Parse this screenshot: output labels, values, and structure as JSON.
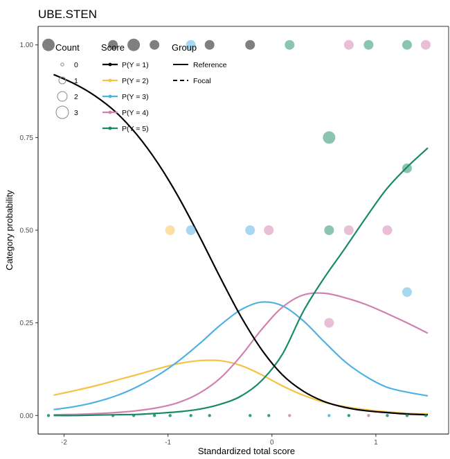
{
  "chart_data": {
    "type": "line",
    "title": "UBE.STEN",
    "xlabel": "Standardized total score",
    "ylabel": "Category probability",
    "xlim": [
      -2.25,
      1.7
    ],
    "ylim": [
      -0.05,
      1.05
    ],
    "x_ticks": [
      -2,
      -1,
      0,
      1
    ],
    "x_tick_labels": [
      "-2",
      "-1",
      "0",
      "1"
    ],
    "y_ticks": [
      0,
      0.25,
      0.5,
      0.75,
      1
    ],
    "y_tick_labels": [
      "0.00",
      "0.25",
      "0.50",
      "0.75",
      "1.00"
    ],
    "grid": false,
    "colors": {
      "P(Y = 1)": "#000000",
      "P(Y = 2)": "#f6c244",
      "P(Y = 3)": "#4fb0e4",
      "P(Y = 4)": "#d17fb0",
      "P(Y = 5)": "#168a68"
    },
    "curves": [
      {
        "score": "P(Y = 1)",
        "group": "Reference",
        "x": [
          -2.1,
          -1.9,
          -1.7,
          -1.5,
          -1.3,
          -1.1,
          -0.9,
          -0.7,
          -0.5,
          -0.3,
          -0.1,
          0.1,
          0.3,
          0.5,
          0.7,
          0.9,
          1.1,
          1.3,
          1.5
        ],
        "y": [
          0.92,
          0.895,
          0.862,
          0.818,
          0.758,
          0.682,
          0.59,
          0.485,
          0.374,
          0.268,
          0.178,
          0.11,
          0.066,
          0.038,
          0.022,
          0.013,
          0.008,
          0.004,
          0.002
        ]
      },
      {
        "score": "P(Y = 2)",
        "group": "Reference",
        "x": [
          -2.1,
          -1.9,
          -1.7,
          -1.5,
          -1.3,
          -1.1,
          -0.9,
          -0.7,
          -0.5,
          -0.3,
          -0.1,
          0.1,
          0.3,
          0.5,
          0.7,
          0.9,
          1.1,
          1.3,
          1.5
        ],
        "y": [
          0.055,
          0.067,
          0.08,
          0.095,
          0.11,
          0.126,
          0.14,
          0.148,
          0.148,
          0.135,
          0.11,
          0.08,
          0.055,
          0.036,
          0.024,
          0.016,
          0.01,
          0.006,
          0.004
        ]
      },
      {
        "score": "P(Y = 3)",
        "group": "Reference",
        "x": [
          -2.1,
          -1.9,
          -1.7,
          -1.5,
          -1.3,
          -1.1,
          -0.9,
          -0.7,
          -0.5,
          -0.3,
          -0.1,
          0.1,
          0.3,
          0.5,
          0.7,
          0.9,
          1.1,
          1.3,
          1.5
        ],
        "y": [
          0.016,
          0.024,
          0.036,
          0.053,
          0.077,
          0.108,
          0.147,
          0.193,
          0.243,
          0.285,
          0.306,
          0.296,
          0.256,
          0.2,
          0.146,
          0.106,
          0.077,
          0.063,
          0.053
        ]
      },
      {
        "score": "P(Y = 4)",
        "group": "Reference",
        "x": [
          -2.1,
          -1.9,
          -1.7,
          -1.5,
          -1.3,
          -1.1,
          -0.9,
          -0.7,
          -0.5,
          -0.3,
          -0.1,
          0.1,
          0.3,
          0.5,
          0.7,
          0.9,
          1.1,
          1.3,
          1.5
        ],
        "y": [
          0.002,
          0.003,
          0.005,
          0.008,
          0.013,
          0.021,
          0.035,
          0.06,
          0.1,
          0.16,
          0.232,
          0.292,
          0.325,
          0.33,
          0.318,
          0.3,
          0.276,
          0.25,
          0.222
        ]
      },
      {
        "score": "P(Y = 5)",
        "group": "Reference",
        "x": [
          -2.1,
          -1.9,
          -1.7,
          -1.5,
          -1.3,
          -1.1,
          -0.9,
          -0.7,
          -0.5,
          -0.3,
          -0.1,
          0.1,
          0.3,
          0.5,
          0.7,
          0.9,
          1.1,
          1.3,
          1.5
        ],
        "y": [
          0.0,
          0.0,
          0.001,
          0.002,
          0.003,
          0.006,
          0.01,
          0.017,
          0.03,
          0.052,
          0.094,
          0.165,
          0.28,
          0.37,
          0.45,
          0.532,
          0.61,
          0.67,
          0.722
        ]
      }
    ],
    "points": [
      {
        "x": -2.15,
        "y": 1.0,
        "count": 3,
        "score": "P(Y = 1)"
      },
      {
        "x": -1.53,
        "y": 1.0,
        "count": 2,
        "score": "P(Y = 1)"
      },
      {
        "x": -1.33,
        "y": 1.0,
        "count": 3,
        "score": "P(Y = 1)"
      },
      {
        "x": -1.13,
        "y": 1.0,
        "count": 2,
        "score": "P(Y = 1)"
      },
      {
        "x": -0.78,
        "y": 1.0,
        "count": 2,
        "score": "P(Y = 3)"
      },
      {
        "x": -0.6,
        "y": 1.0,
        "count": 2,
        "score": "P(Y = 1)"
      },
      {
        "x": -0.21,
        "y": 1.0,
        "count": 2,
        "score": "P(Y = 1)"
      },
      {
        "x": 0.17,
        "y": 1.0,
        "count": 2,
        "score": "P(Y = 5)"
      },
      {
        "x": 0.74,
        "y": 1.0,
        "count": 2,
        "score": "P(Y = 4)"
      },
      {
        "x": 0.93,
        "y": 1.0,
        "count": 2,
        "score": "P(Y = 5)"
      },
      {
        "x": 1.3,
        "y": 1.0,
        "count": 2,
        "score": "P(Y = 5)"
      },
      {
        "x": 1.48,
        "y": 1.0,
        "count": 2,
        "score": "P(Y = 4)"
      },
      {
        "x": 0.55,
        "y": 0.75,
        "count": 3,
        "score": "P(Y = 5)"
      },
      {
        "x": 1.3,
        "y": 0.667,
        "count": 2,
        "score": "P(Y = 5)"
      },
      {
        "x": -0.98,
        "y": 0.5,
        "count": 2,
        "score": "P(Y = 2)"
      },
      {
        "x": -0.78,
        "y": 0.5,
        "count": 2,
        "score": "P(Y = 3)"
      },
      {
        "x": -0.21,
        "y": 0.5,
        "count": 2,
        "score": "P(Y = 3)"
      },
      {
        "x": -0.03,
        "y": 0.5,
        "count": 2,
        "score": "P(Y = 4)"
      },
      {
        "x": 0.55,
        "y": 0.5,
        "count": 2,
        "score": "P(Y = 5)"
      },
      {
        "x": 0.74,
        "y": 0.5,
        "count": 2,
        "score": "P(Y = 4)"
      },
      {
        "x": 1.11,
        "y": 0.5,
        "count": 2,
        "score": "P(Y = 4)"
      },
      {
        "x": 1.3,
        "y": 0.333,
        "count": 2,
        "score": "P(Y = 3)"
      },
      {
        "x": 0.55,
        "y": 0.25,
        "count": 2,
        "score": "P(Y = 4)"
      },
      {
        "x": -2.15,
        "y": 0.0,
        "count": 0,
        "score": "P(Y = 5)"
      },
      {
        "x": -1.53,
        "y": 0.0,
        "count": 0,
        "score": "P(Y = 5)"
      },
      {
        "x": -1.33,
        "y": 0.0,
        "count": 0,
        "score": "P(Y = 5)"
      },
      {
        "x": -1.13,
        "y": 0.0,
        "count": 0,
        "score": "P(Y = 5)"
      },
      {
        "x": -0.98,
        "y": 0.0,
        "count": 0,
        "score": "P(Y = 5)"
      },
      {
        "x": -0.78,
        "y": 0.0,
        "count": 0,
        "score": "P(Y = 5)"
      },
      {
        "x": -0.6,
        "y": 0.0,
        "count": 0,
        "score": "P(Y = 5)"
      },
      {
        "x": -0.21,
        "y": 0.0,
        "count": 0,
        "score": "P(Y = 5)"
      },
      {
        "x": -0.03,
        "y": 0.0,
        "count": 0,
        "score": "P(Y = 5)"
      },
      {
        "x": 0.17,
        "y": 0.0,
        "count": 0,
        "score": "P(Y = 4)"
      },
      {
        "x": 0.55,
        "y": 0.0,
        "count": 0,
        "score": "P(Y = 3)"
      },
      {
        "x": 0.74,
        "y": 0.0,
        "count": 0,
        "score": "P(Y = 5)"
      },
      {
        "x": 0.93,
        "y": 0.0,
        "count": 0,
        "score": "P(Y = 4)"
      },
      {
        "x": 1.11,
        "y": 0.0,
        "count": 0,
        "score": "P(Y = 5)"
      },
      {
        "x": 1.3,
        "y": 0.0,
        "count": 0,
        "score": "P(Y = 5)"
      },
      {
        "x": 1.48,
        "y": 0.0,
        "count": 0,
        "score": "P(Y = 5)"
      }
    ],
    "legend": {
      "placement": "top-left",
      "count": {
        "title": "Count",
        "items": [
          {
            "label": "0",
            "count": 0
          },
          {
            "label": "1",
            "count": 1
          },
          {
            "label": "2",
            "count": 2
          },
          {
            "label": "3",
            "count": 3
          }
        ]
      },
      "score": {
        "title": "Score",
        "items": [
          {
            "label": "P(Y = 1)"
          },
          {
            "label": "P(Y = 2)"
          },
          {
            "label": "P(Y = 3)"
          },
          {
            "label": "P(Y = 4)"
          },
          {
            "label": "P(Y = 5)"
          }
        ]
      },
      "group": {
        "title": "Group",
        "items": [
          {
            "label": "Reference",
            "linetype": "solid"
          },
          {
            "label": "Focal",
            "linetype": "dashed"
          }
        ]
      }
    }
  }
}
